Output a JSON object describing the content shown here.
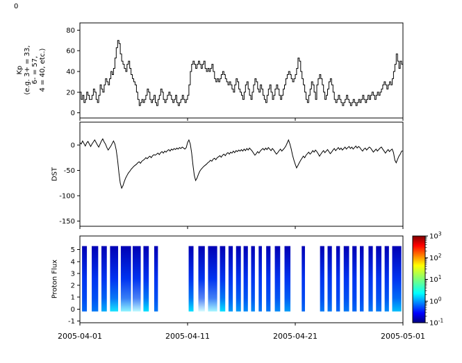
{
  "figure": {
    "background": "#ffffff",
    "stray_label": "0",
    "x_range_days": 30,
    "xticks": [
      "2005-04-01",
      "2005-04-11",
      "2005-04-21",
      "2005-05-01"
    ]
  },
  "chart_data": [
    {
      "type": "line",
      "panel": "kp",
      "ylabel_lines": [
        "Kp",
        "(e.g. 3+ = 33,",
        "6- = 57,",
        "4 = 40, etc.)"
      ],
      "yticks": [
        80,
        60,
        40,
        20,
        0
      ],
      "ylim": [
        -5,
        87
      ],
      "x_start": "2005-04-01",
      "x_end": "2005-05-01",
      "values_per_day": 8,
      "line_color": "#000000",
      "values": [
        20,
        13,
        17,
        10,
        13,
        20,
        17,
        13,
        13,
        17,
        23,
        20,
        13,
        10,
        17,
        27,
        23,
        20,
        27,
        33,
        30,
        27,
        33,
        40,
        37,
        43,
        53,
        63,
        70,
        67,
        57,
        50,
        47,
        43,
        40,
        47,
        50,
        43,
        37,
        33,
        30,
        27,
        20,
        13,
        7,
        10,
        13,
        10,
        13,
        17,
        23,
        20,
        13,
        10,
        13,
        17,
        10,
        7,
        13,
        17,
        23,
        20,
        13,
        10,
        13,
        17,
        20,
        17,
        13,
        10,
        13,
        17,
        10,
        7,
        10,
        13,
        17,
        13,
        10,
        13,
        17,
        27,
        40,
        47,
        50,
        47,
        43,
        47,
        50,
        47,
        43,
        47,
        50,
        43,
        40,
        43,
        40,
        43,
        47,
        40,
        33,
        30,
        33,
        30,
        33,
        37,
        40,
        37,
        33,
        30,
        27,
        30,
        27,
        23,
        20,
        27,
        33,
        30,
        23,
        20,
        17,
        13,
        20,
        27,
        30,
        23,
        17,
        13,
        20,
        27,
        33,
        30,
        23,
        20,
        27,
        23,
        17,
        13,
        10,
        17,
        23,
        27,
        20,
        13,
        17,
        23,
        27,
        23,
        17,
        13,
        17,
        23,
        27,
        33,
        37,
        40,
        37,
        33,
        30,
        33,
        37,
        43,
        53,
        50,
        40,
        33,
        27,
        20,
        13,
        10,
        17,
        23,
        30,
        27,
        20,
        13,
        27,
        33,
        37,
        33,
        27,
        20,
        13,
        17,
        23,
        30,
        33,
        27,
        20,
        13,
        10,
        13,
        17,
        13,
        10,
        7,
        10,
        13,
        17,
        13,
        10,
        7,
        10,
        13,
        10,
        7,
        10,
        13,
        10,
        13,
        17,
        13,
        10,
        13,
        17,
        13,
        17,
        20,
        17,
        13,
        17,
        20,
        17,
        20,
        23,
        27,
        30,
        27,
        23,
        27,
        30,
        27,
        33,
        40,
        47,
        57,
        50,
        43,
        50,
        47
      ]
    },
    {
      "type": "line",
      "panel": "dst",
      "ylabel": "DST",
      "yticks": [
        0,
        -50,
        -100,
        -150
      ],
      "ylim": [
        -160,
        45
      ],
      "x_start": "2005-04-01",
      "x_end": "2005-05-01",
      "values_per_day": 8,
      "line_color": "#000000",
      "values": [
        5,
        2,
        8,
        3,
        -2,
        4,
        7,
        2,
        -3,
        2,
        6,
        10,
        5,
        0,
        -4,
        2,
        8,
        12,
        6,
        2,
        -5,
        -10,
        -6,
        -2,
        3,
        8,
        2,
        -10,
        -30,
        -55,
        -75,
        -85,
        -80,
        -72,
        -65,
        -60,
        -55,
        -52,
        -48,
        -45,
        -42,
        -40,
        -38,
        -35,
        -33,
        -36,
        -32,
        -30,
        -28,
        -25,
        -27,
        -24,
        -22,
        -25,
        -21,
        -19,
        -20,
        -18,
        -16,
        -19,
        -15,
        -13,
        -16,
        -12,
        -14,
        -11,
        -9,
        -12,
        -8,
        -10,
        -7,
        -9,
        -6,
        -8,
        -5,
        -7,
        -4,
        -6,
        -8,
        -5,
        5,
        10,
        2,
        -15,
        -40,
        -60,
        -70,
        -65,
        -58,
        -52,
        -48,
        -45,
        -42,
        -40,
        -38,
        -35,
        -33,
        -30,
        -32,
        -28,
        -26,
        -29,
        -25,
        -23,
        -21,
        -24,
        -20,
        -18,
        -21,
        -17,
        -15,
        -18,
        -14,
        -16,
        -12,
        -15,
        -11,
        -13,
        -10,
        -12,
        -9,
        -12,
        -8,
        -11,
        -7,
        -10,
        -6,
        -9,
        -12,
        -16,
        -20,
        -17,
        -13,
        -16,
        -12,
        -9,
        -7,
        -10,
        -6,
        -9,
        -5,
        -8,
        -11,
        -7,
        -10,
        -14,
        -18,
        -15,
        -11,
        -8,
        -12,
        -9,
        -6,
        -2,
        4,
        10,
        2,
        -8,
        -20,
        -30,
        -38,
        -45,
        -40,
        -35,
        -30,
        -26,
        -22,
        -25,
        -20,
        -17,
        -14,
        -18,
        -15,
        -11,
        -14,
        -10,
        -13,
        -17,
        -22,
        -18,
        -14,
        -11,
        -15,
        -12,
        -9,
        -13,
        -17,
        -14,
        -10,
        -7,
        -11,
        -8,
        -5,
        -9,
        -6,
        -10,
        -7,
        -4,
        -8,
        -5,
        -3,
        -7,
        -4,
        -8,
        -5,
        -2,
        -6,
        -3,
        -5,
        -9,
        -12,
        -8,
        -6,
        -10,
        -7,
        -4,
        -6,
        -10,
        -14,
        -11,
        -8,
        -12,
        -9,
        -6,
        -4,
        -8,
        -12,
        -16,
        -12,
        -9,
        -13,
        -10,
        -8,
        -15,
        -30,
        -35,
        -28,
        -22,
        -18,
        -12
      ]
    },
    {
      "type": "heatmap",
      "panel": "proton-flux",
      "ylabel": "Proton Flux",
      "yticks": [
        5,
        4,
        3,
        2,
        1,
        0,
        -1
      ],
      "ylim": [
        -1.15,
        6.15
      ],
      "bar_y_range": [
        -0.2,
        5.3
      ],
      "x_start": "2005-04-01",
      "x_end": "2005-05-01",
      "stripes": [
        {
          "d": 0.2,
          "w": 0.45,
          "i": 0.15
        },
        {
          "d": 1.1,
          "w": 0.6,
          "i": 0.2
        },
        {
          "d": 2.0,
          "w": 0.5,
          "i": 0.35
        },
        {
          "d": 2.8,
          "w": 0.75,
          "i": 0.55
        },
        {
          "d": 3.8,
          "w": 0.95,
          "i": 0.8
        },
        {
          "d": 4.9,
          "w": 0.75,
          "i": 0.9
        },
        {
          "d": 5.9,
          "w": 0.5,
          "i": 0.5
        },
        {
          "d": 6.9,
          "w": 0.35,
          "i": 0.2
        },
        {
          "d": 10.1,
          "w": 0.45,
          "i": 0.5
        },
        {
          "d": 11.0,
          "w": 0.6,
          "i": 0.95
        },
        {
          "d": 11.9,
          "w": 0.85,
          "i": 0.85
        },
        {
          "d": 13.0,
          "w": 0.5,
          "i": 0.5
        },
        {
          "d": 13.8,
          "w": 0.4,
          "i": 0.3
        },
        {
          "d": 14.5,
          "w": 0.45,
          "i": 0.3
        },
        {
          "d": 15.2,
          "w": 0.4,
          "i": 0.25
        },
        {
          "d": 15.9,
          "w": 0.35,
          "i": 0.25
        },
        {
          "d": 16.6,
          "w": 0.3,
          "i": 0.2
        },
        {
          "d": 17.3,
          "w": 0.4,
          "i": 0.2
        },
        {
          "d": 18.1,
          "w": 0.5,
          "i": 0.25
        },
        {
          "d": 19.0,
          "w": 0.55,
          "i": 0.3
        },
        {
          "d": 20.6,
          "w": 0.3,
          "i": 0.15
        },
        {
          "d": 22.3,
          "w": 0.4,
          "i": 0.2
        },
        {
          "d": 23.0,
          "w": 0.4,
          "i": 0.2
        },
        {
          "d": 23.8,
          "w": 0.35,
          "i": 0.15
        },
        {
          "d": 24.5,
          "w": 0.5,
          "i": 0.2
        },
        {
          "d": 25.3,
          "w": 0.4,
          "i": 0.15
        },
        {
          "d": 26.0,
          "w": 0.35,
          "i": 0.15
        },
        {
          "d": 26.8,
          "w": 0.4,
          "i": 0.2
        },
        {
          "d": 27.5,
          "w": 0.5,
          "i": 0.2
        },
        {
          "d": 28.3,
          "w": 0.4,
          "i": 0.25
        },
        {
          "d": 29.0,
          "w": 0.85,
          "i": 0.4
        }
      ],
      "colorbar": {
        "base": "10",
        "tick_exponents": [
          3,
          2,
          1,
          0,
          -1
        ],
        "scale": "log",
        "gradient": [
          {
            "p": 0.0,
            "c": "#00007f"
          },
          {
            "p": 0.11,
            "c": "#0000ff"
          },
          {
            "p": 0.34,
            "c": "#00ffff"
          },
          {
            "p": 0.5,
            "c": "#7dff79"
          },
          {
            "p": 0.66,
            "c": "#ffff00"
          },
          {
            "p": 0.89,
            "c": "#ff0000"
          },
          {
            "p": 1.0,
            "c": "#7f0000"
          }
        ]
      }
    }
  ]
}
